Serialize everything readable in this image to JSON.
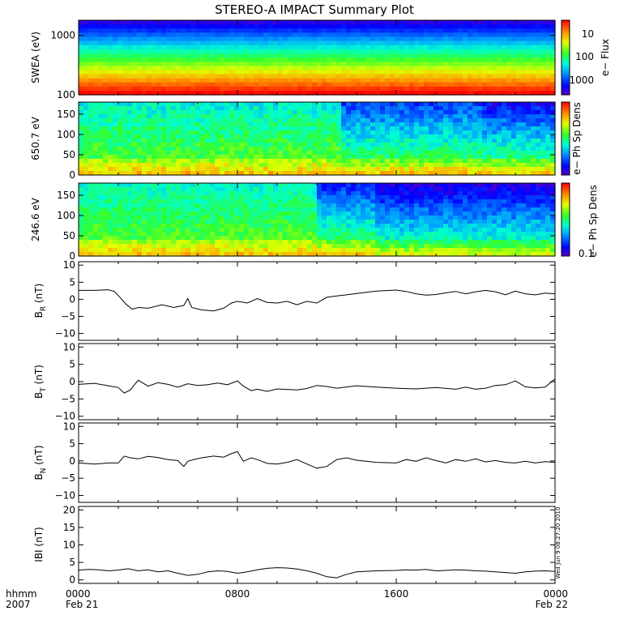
{
  "title": "STEREO-A IMPACT Summary Plot",
  "timestamp": "Wed Jun 9 08:27:20 2010",
  "x_axis": {
    "label_time": "hhmm",
    "label_year": "2007",
    "ticks": [
      "0000",
      "0800",
      "1600",
      "0000"
    ],
    "dates": [
      "Feb 21",
      "Feb 22"
    ],
    "range_hours": [
      0,
      24
    ]
  },
  "chart_data": [
    {
      "type": "heatmap",
      "ylabel": "SWEA (eV)",
      "ylim": [
        100,
        1800
      ],
      "log_scale": true,
      "yticks": [
        100,
        1000
      ],
      "ytick_labels": [
        "100",
        "1000"
      ],
      "colorbar": {
        "label": "e− Flux",
        "log_scale": true,
        "ticks": [
          "10",
          "100",
          "1000"
        ]
      }
    },
    {
      "type": "heatmap",
      "ylabel": "650.7 eV",
      "ylim": [
        0,
        180
      ],
      "yticks": [
        0,
        50,
        100,
        150
      ],
      "ytick_labels": [
        "0",
        "50",
        "100",
        "150"
      ],
      "colorbar": {
        "label": "e− Ph Sp Dens",
        "ticks": []
      }
    },
    {
      "type": "heatmap",
      "ylabel": "246.6 eV",
      "ylim": [
        0,
        180
      ],
      "yticks": [
        0,
        50,
        100,
        150
      ],
      "ytick_labels": [
        "0",
        "50",
        "100",
        "150"
      ],
      "colorbar": {
        "label": "e− Ph Sp Dens",
        "ticks": [
          "0.1"
        ]
      }
    },
    {
      "type": "line",
      "ylabel_main": "B",
      "ylabel_sub": "R",
      "ylabel_unit": " (nT)",
      "ylim": [
        -12,
        11
      ],
      "yticks": [
        -10,
        -5,
        0,
        5,
        10
      ],
      "ytick_labels": [
        "−10",
        "−5",
        "0",
        "5",
        "10"
      ],
      "x": [
        0,
        0.8,
        1.5,
        1.8,
        2.1,
        2.4,
        2.7,
        3.0,
        3.5,
        4.2,
        4.8,
        5.3,
        5.5,
        5.7,
        6.2,
        6.8,
        7.3,
        7.7,
        8.0,
        8.5,
        9.0,
        9.5,
        10.0,
        10.5,
        11.0,
        11.5,
        12.0,
        12.5,
        13.0,
        13.5,
        14.0,
        15.0,
        16.0,
        16.5,
        17.0,
        17.5,
        18.0,
        18.5,
        19.0,
        19.5,
        20.0,
        20.5,
        21.0,
        21.5,
        22.0,
        22.5,
        23.0,
        23.5,
        24.0
      ],
      "values": [
        2.6,
        2.6,
        2.8,
        2.3,
        0.5,
        -1.5,
        -2.9,
        -2.4,
        -2.6,
        -1.6,
        -2.4,
        -1.8,
        0.2,
        -2.4,
        -3.1,
        -3.4,
        -2.6,
        -1.1,
        -0.6,
        -1.1,
        0.2,
        -0.9,
        -1.1,
        -0.6,
        -1.6,
        -0.6,
        -1.1,
        0.6,
        1.0,
        1.3,
        1.7,
        2.4,
        2.7,
        2.3,
        1.6,
        1.2,
        1.4,
        1.9,
        2.3,
        1.6,
        2.2,
        2.6,
        2.2,
        1.3,
        2.4,
        1.6,
        1.3,
        1.8,
        1.6
      ]
    },
    {
      "type": "line",
      "ylabel_main": "B",
      "ylabel_sub": "T",
      "ylabel_unit": " (nT)",
      "ylim": [
        -11,
        11
      ],
      "yticks": [
        -10,
        -5,
        0,
        5,
        10
      ],
      "ytick_labels": [
        "−10",
        "−5",
        "0",
        "5",
        "10"
      ],
      "x": [
        0,
        0.8,
        1.5,
        2.0,
        2.3,
        2.6,
        3.0,
        3.5,
        4.0,
        4.5,
        5.0,
        5.5,
        6.0,
        6.5,
        7.0,
        7.5,
        8.0,
        8.3,
        8.7,
        9.0,
        9.5,
        10.0,
        11.0,
        11.5,
        12.0,
        12.5,
        13.0,
        14.0,
        15.0,
        16.0,
        17.0,
        18.0,
        19.0,
        19.5,
        20.0,
        20.5,
        21.0,
        21.5,
        22.0,
        22.5,
        23.0,
        23.5,
        24.0
      ],
      "values": [
        -0.8,
        -0.5,
        -1.2,
        -1.7,
        -3.3,
        -2.4,
        0.4,
        -1.3,
        -0.3,
        -0.8,
        -1.6,
        -0.6,
        -1.1,
        -0.9,
        -0.4,
        -0.9,
        0.2,
        -1.3,
        -2.6,
        -2.2,
        -2.8,
        -2.1,
        -2.4,
        -2.0,
        -1.1,
        -1.4,
        -1.9,
        -1.2,
        -1.6,
        -1.9,
        -2.1,
        -1.7,
        -2.2,
        -1.6,
        -2.2,
        -1.9,
        -1.1,
        -0.9,
        0.2,
        -1.5,
        -1.8,
        -1.6,
        0.8
      ]
    },
    {
      "type": "line",
      "ylabel_main": "B",
      "ylabel_sub": "N",
      "ylabel_unit": " (nT)",
      "ylim": [
        -12,
        11
      ],
      "yticks": [
        -10,
        -5,
        0,
        5,
        10
      ],
      "ytick_labels": [
        "−10",
        "−5",
        "0",
        "5",
        "10"
      ],
      "x": [
        0,
        0.8,
        1.5,
        2.0,
        2.3,
        2.6,
        3.0,
        3.5,
        4.0,
        4.5,
        5.0,
        5.3,
        5.5,
        5.8,
        6.2,
        6.8,
        7.3,
        7.7,
        8.0,
        8.3,
        8.7,
        9.0,
        9.5,
        10.0,
        10.5,
        11.0,
        11.5,
        12.0,
        12.5,
        13.0,
        13.5,
        14.0,
        15.0,
        16.0,
        16.5,
        17.0,
        17.5,
        18.0,
        18.5,
        19.0,
        19.5,
        20.0,
        20.5,
        21.0,
        21.5,
        22.0,
        22.5,
        23.0,
        23.5,
        24.0
      ],
      "values": [
        -0.6,
        -0.9,
        -0.6,
        -0.6,
        1.4,
        0.9,
        0.6,
        1.3,
        1.0,
        0.4,
        0.1,
        -1.6,
        -0.1,
        0.4,
        0.9,
        1.4,
        1.1,
        2.1,
        2.7,
        -0.1,
        0.9,
        0.4,
        -0.7,
        -0.9,
        -0.4,
        0.4,
        -0.9,
        -2.1,
        -1.6,
        0.4,
        0.9,
        0.2,
        -0.4,
        -0.6,
        0.4,
        -0.1,
        0.9,
        0.1,
        -0.6,
        0.4,
        -0.1,
        0.6,
        -0.3,
        0.1,
        -0.4,
        -0.6,
        -0.1,
        -0.6,
        -0.2,
        -0.4
      ]
    },
    {
      "type": "line",
      "ylabel": "IBI (nT)",
      "ylim": [
        -1,
        21
      ],
      "yticks": [
        0,
        5,
        10,
        15,
        20
      ],
      "ytick_labels": [
        "0",
        "5",
        "10",
        "15",
        "20"
      ],
      "x": [
        0,
        0.5,
        1.0,
        1.5,
        2.0,
        2.5,
        3.0,
        3.5,
        4.0,
        4.5,
        5.0,
        5.5,
        6.0,
        6.5,
        7.0,
        7.5,
        8.0,
        8.5,
        9.0,
        9.5,
        10.0,
        10.5,
        11.0,
        11.5,
        12.0,
        12.5,
        13.0,
        13.5,
        14.0,
        15.0,
        16.0,
        16.5,
        17.0,
        17.5,
        18.0,
        18.5,
        19.0,
        19.5,
        20.0,
        20.5,
        21.0,
        21.5,
        22.0,
        22.5,
        23.0,
        23.5,
        24.0
      ],
      "values": [
        2.8,
        3.0,
        2.9,
        2.6,
        2.8,
        3.2,
        2.6,
        2.9,
        2.3,
        2.6,
        1.9,
        1.3,
        1.6,
        2.3,
        2.6,
        2.4,
        1.9,
        2.3,
        2.9,
        3.3,
        3.5,
        3.4,
        3.1,
        2.6,
        1.9,
        0.9,
        0.6,
        1.6,
        2.3,
        2.6,
        2.7,
        2.9,
        2.8,
        3.0,
        2.6,
        2.7,
        2.9,
        2.8,
        2.6,
        2.5,
        2.3,
        2.1,
        1.9,
        2.3,
        2.5,
        2.6,
        2.4
      ]
    }
  ]
}
